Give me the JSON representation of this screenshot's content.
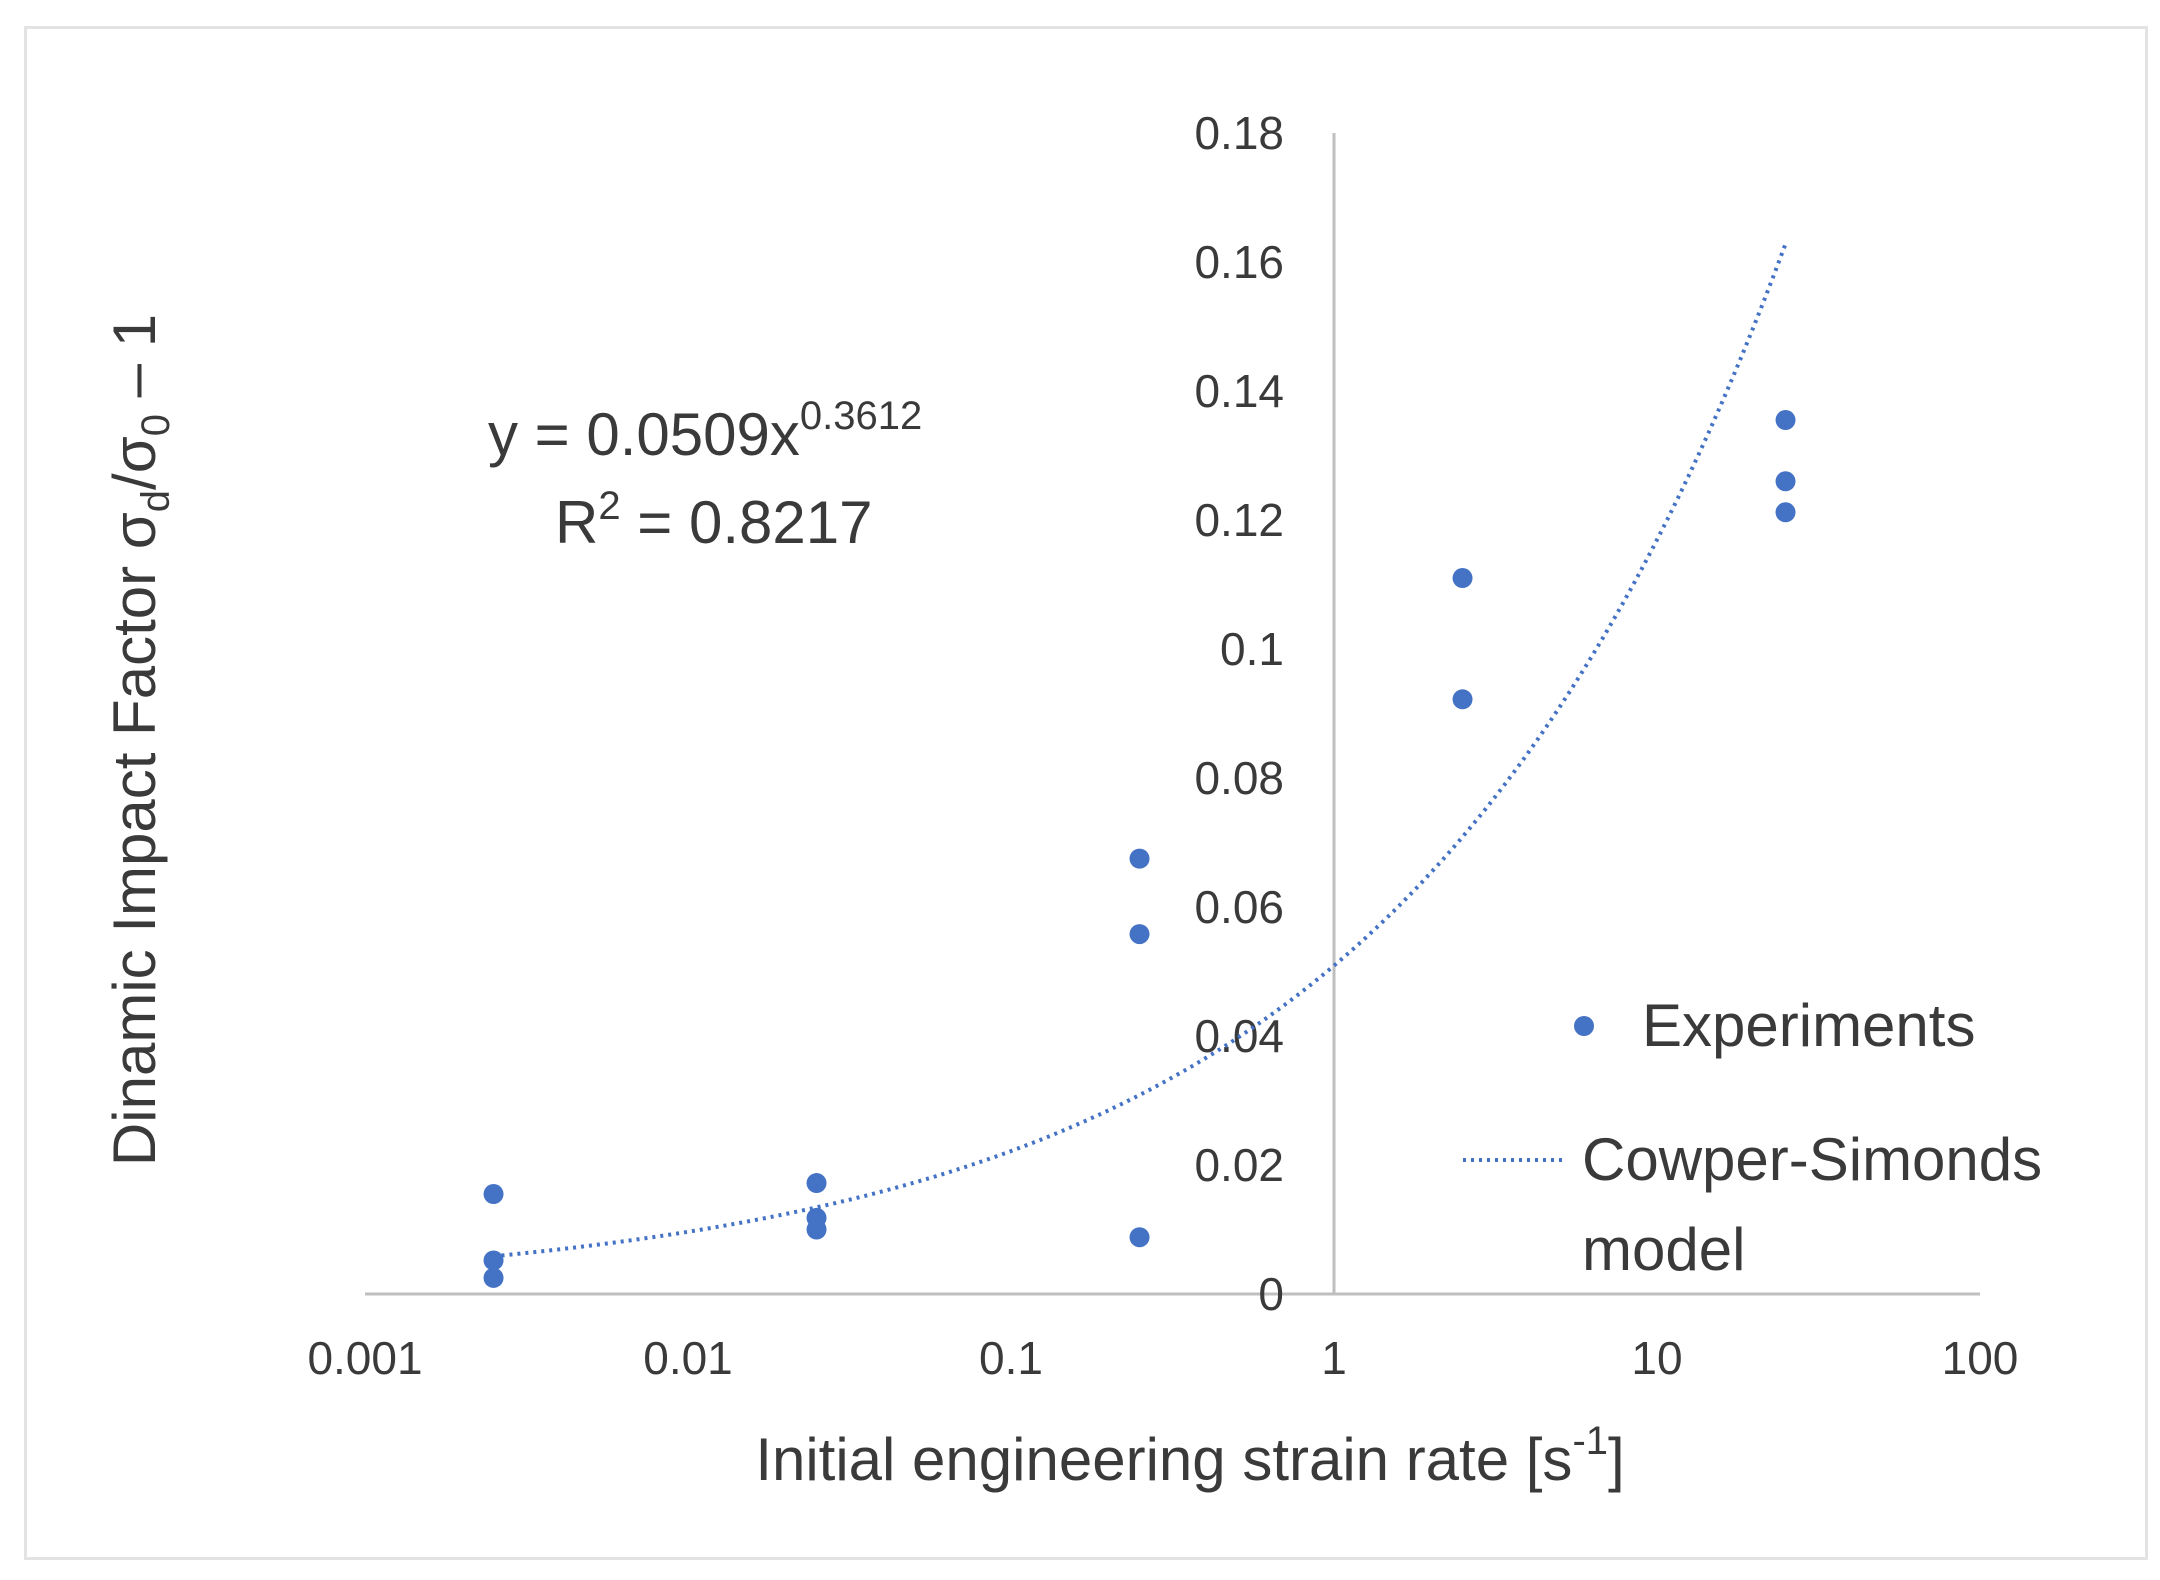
{
  "chart_data": {
    "type": "scatter",
    "title": "",
    "xlabel": {
      "main": "Initial engineering strain rate [s",
      "sup": "-1",
      "tail": "]"
    },
    "ylabel": {
      "prefix": "Dinamic Impact Factor",
      "sigma1": "σ",
      "sub1": "d",
      "slash": "/σ",
      "sub2": "0",
      "suffix": " – 1"
    },
    "x_scale": "log",
    "xlim": [
      0.001,
      100
    ],
    "ylim": [
      0,
      0.18
    ],
    "x_ticks": [
      {
        "value": 0.001,
        "label": "0.001"
      },
      {
        "value": 0.01,
        "label": "0.01"
      },
      {
        "value": 0.1,
        "label": "0.1"
      },
      {
        "value": 1,
        "label": "1"
      },
      {
        "value": 10,
        "label": "10"
      },
      {
        "value": 100,
        "label": "100"
      }
    ],
    "y_ticks": [
      {
        "value": 0,
        "label": "0"
      },
      {
        "value": 0.02,
        "label": "0.02"
      },
      {
        "value": 0.04,
        "label": "0.04"
      },
      {
        "value": 0.06,
        "label": "0.06"
      },
      {
        "value": 0.08,
        "label": "0.08"
      },
      {
        "value": 0.1,
        "label": "0.1"
      },
      {
        "value": 0.12,
        "label": "0.12"
      },
      {
        "value": 0.14,
        "label": "0.14"
      },
      {
        "value": 0.16,
        "label": "0.16"
      },
      {
        "value": 0.18,
        "label": "0.18"
      }
    ],
    "y_axis_crosses_x_at": 1,
    "series": [
      {
        "name": "Experiments",
        "kind": "scatter",
        "color": "#4472c4",
        "points": [
          {
            "x": 0.0025,
            "y": 0.0155
          },
          {
            "x": 0.0025,
            "y": 0.0052
          },
          {
            "x": 0.0025,
            "y": 0.0025
          },
          {
            "x": 0.025,
            "y": 0.0172
          },
          {
            "x": 0.025,
            "y": 0.0118
          },
          {
            "x": 0.025,
            "y": 0.01
          },
          {
            "x": 0.25,
            "y": 0.0675
          },
          {
            "x": 0.25,
            "y": 0.0558
          },
          {
            "x": 0.25,
            "y": 0.0088
          },
          {
            "x": 2.5,
            "y": 0.111
          },
          {
            "x": 2.5,
            "y": 0.0922
          },
          {
            "x": 25,
            "y": 0.1355
          },
          {
            "x": 25,
            "y": 0.126
          },
          {
            "x": 25,
            "y": 0.1212
          }
        ]
      },
      {
        "name": "Cowper-Simonds model",
        "legend_lines": [
          "Cowper-Simonds",
          "model"
        ],
        "kind": "line",
        "style": "dotted",
        "color": "#4472c4",
        "equation": {
          "coefficient": 0.0509,
          "exponent": 0.3612
        },
        "x_range": [
          0.0025,
          25
        ]
      }
    ],
    "trendline_label": {
      "eq_prefix": "y = 0.0509x",
      "eq_exponent": "0.3612",
      "r2_prefix": "R",
      "r2_sup": "2",
      "r2_value": " = 0.8217"
    },
    "legend_position": "right"
  }
}
